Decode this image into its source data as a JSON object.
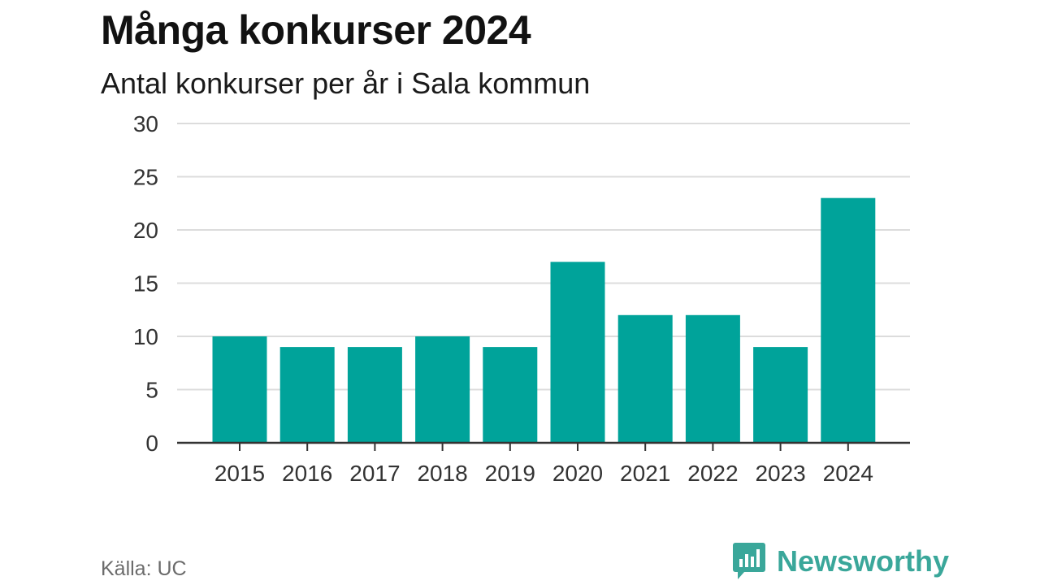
{
  "title": "Många konkurser 2024",
  "subtitle": "Antal konkurser per år i Sala kommun",
  "source": "Källa: UC",
  "brand": {
    "name": "Newsworthy",
    "color": "#3aa79a",
    "icon": "newsworthy-logo-icon"
  },
  "colors": {
    "bar": "#00a39a",
    "grid": "#dcdcdc",
    "axis": "#333333"
  },
  "chart_data": {
    "type": "bar",
    "title": "Många konkurser 2024",
    "subtitle": "Antal konkurser per år i Sala kommun",
    "categories": [
      "2015",
      "2016",
      "2017",
      "2018",
      "2019",
      "2020",
      "2021",
      "2022",
      "2023",
      "2024"
    ],
    "values": [
      10,
      9,
      9,
      10,
      9,
      17,
      12,
      12,
      9,
      23
    ],
    "yticks": [
      0,
      5,
      10,
      15,
      20,
      25,
      30
    ],
    "ylim": [
      0,
      30
    ],
    "xlabel": "",
    "ylabel": "",
    "grid": true,
    "legend": "none"
  }
}
